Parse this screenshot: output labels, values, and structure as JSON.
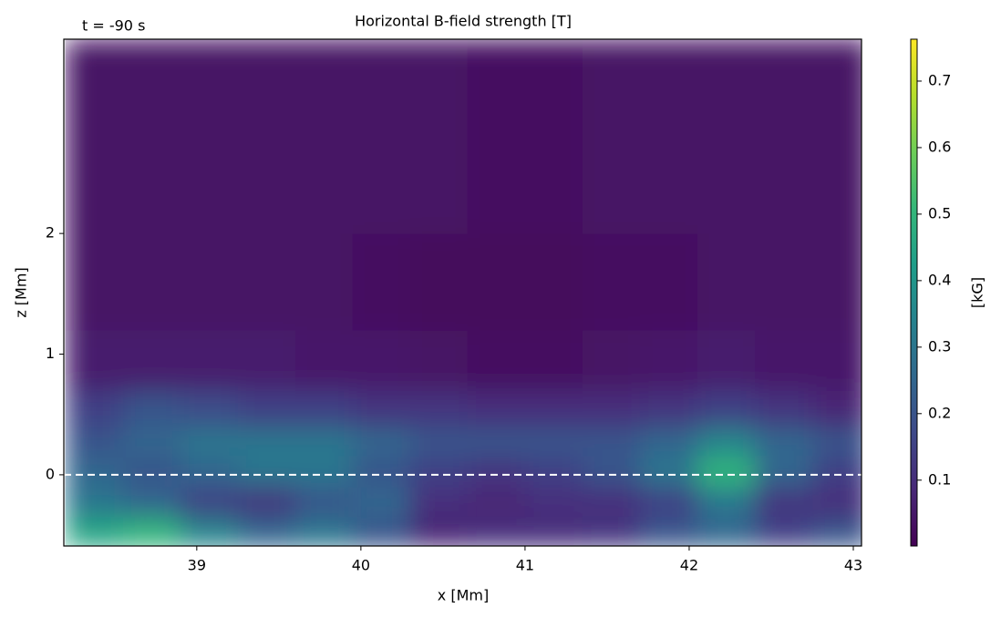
{
  "chart_data": {
    "type": "heatmap",
    "title": "Horizontal B-field strength [T]",
    "annotation": "t = -90 s",
    "xlabel": "x [Mm]",
    "ylabel": "z [Mm]",
    "colorbar_label": "[kG]",
    "cmap": "viridis",
    "x_bins": [
      38.2,
      38.55,
      38.9,
      39.25,
      39.6,
      39.95,
      40.3,
      40.65,
      41.0,
      41.35,
      41.7,
      42.05,
      42.4,
      42.75,
      43.1
    ],
    "y_bins": [
      -0.6,
      -0.35,
      -0.1,
      0.15,
      0.4,
      0.7,
      1.2,
      2.0,
      3.61
    ],
    "z": [
      [
        0.45,
        0.5,
        0.35,
        0.25,
        0.3,
        0.2,
        0.08,
        0.1,
        0.1,
        0.12,
        0.2,
        0.25,
        0.15,
        0.2
      ],
      [
        0.3,
        0.25,
        0.15,
        0.12,
        0.2,
        0.25,
        0.1,
        0.08,
        0.1,
        0.1,
        0.15,
        0.3,
        0.12,
        0.1
      ],
      [
        0.25,
        0.2,
        0.25,
        0.3,
        0.3,
        0.2,
        0.15,
        0.12,
        0.15,
        0.2,
        0.3,
        0.5,
        0.25,
        0.15
      ],
      [
        0.2,
        0.25,
        0.3,
        0.3,
        0.3,
        0.25,
        0.2,
        0.2,
        0.2,
        0.2,
        0.25,
        0.35,
        0.25,
        0.2
      ],
      [
        0.15,
        0.2,
        0.18,
        0.15,
        0.15,
        0.12,
        0.12,
        0.1,
        0.1,
        0.1,
        0.12,
        0.15,
        0.12,
        0.08
      ],
      [
        0.06,
        0.06,
        0.06,
        0.06,
        0.05,
        0.05,
        0.04,
        0.03,
        0.03,
        0.04,
        0.05,
        0.06,
        0.05,
        0.05
      ],
      [
        0.04,
        0.04,
        0.04,
        0.04,
        0.04,
        0.03,
        0.02,
        0.02,
        0.02,
        0.03,
        0.03,
        0.04,
        0.04,
        0.04
      ],
      [
        0.04,
        0.04,
        0.04,
        0.04,
        0.04,
        0.04,
        0.04,
        0.03,
        0.03,
        0.04,
        0.04,
        0.04,
        0.04,
        0.04
      ]
    ],
    "hline": 0,
    "xlim": [
      38.19,
      43.05
    ],
    "xticks": [
      39,
      40,
      41,
      42,
      43
    ],
    "ylim": [
      -0.59,
      3.61
    ],
    "yticks": [
      0,
      1,
      2
    ],
    "clim": [
      0.001,
      0.763
    ],
    "cticks": [
      0.1,
      0.2,
      0.3,
      0.4,
      0.5,
      0.6,
      0.7
    ]
  }
}
